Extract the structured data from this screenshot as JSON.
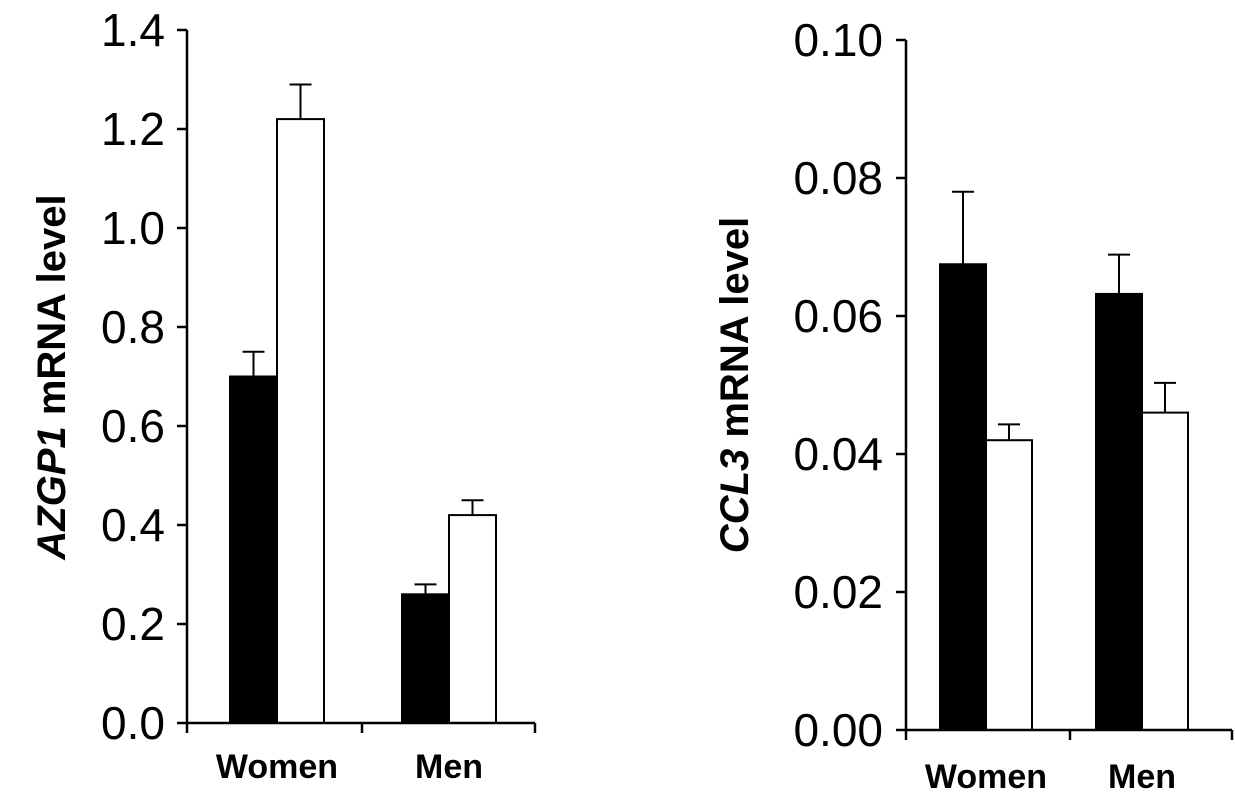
{
  "chart_data": [
    {
      "type": "bar",
      "title": "",
      "xlabel": "",
      "ylabel": {
        "gene": "AZGP1",
        "rest": " mRNA level"
      },
      "categories": [
        "Women",
        "Men"
      ],
      "ylim": [
        0,
        1.4
      ],
      "yticks": [
        "0.0",
        "0.2",
        "0.4",
        "0.6",
        "0.8",
        "1.0",
        "1.2",
        "1.4"
      ],
      "grid": false,
      "series": [
        {
          "fill": "#000000",
          "values": [
            0.7,
            0.26
          ],
          "errors": [
            0.05,
            0.02
          ]
        },
        {
          "fill": "#ffffff",
          "values": [
            1.22,
            0.42
          ],
          "errors": [
            0.07,
            0.03
          ]
        }
      ]
    },
    {
      "type": "bar",
      "title": "",
      "xlabel": "",
      "ylabel": {
        "gene": "CCL3",
        "rest": " mRNA level"
      },
      "categories": [
        "Women",
        "Men"
      ],
      "ylim": [
        0,
        0.1
      ],
      "yticks": [
        "0.00",
        "0.02",
        "0.04",
        "0.06",
        "0.08",
        "0.10"
      ],
      "grid": false,
      "series": [
        {
          "fill": "#000000",
          "values": [
            0.0675,
            0.0632
          ],
          "errors": [
            0.0105,
            0.0057
          ]
        },
        {
          "fill": "#ffffff",
          "values": [
            0.042,
            0.046
          ],
          "errors": [
            0.0023,
            0.0043
          ]
        }
      ]
    }
  ]
}
